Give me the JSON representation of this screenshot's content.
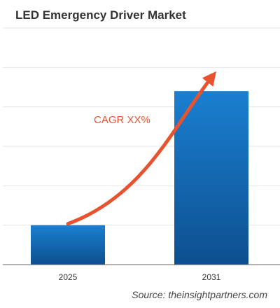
{
  "chart_data": {
    "type": "bar",
    "title": "LED Emergency Driver Market",
    "categories": [
      "2025",
      "2031"
    ],
    "series": [
      {
        "values": [
          1,
          4.4
        ]
      }
    ],
    "annotation": "CAGR XX%",
    "source": "Source: theinsightpartners.com",
    "ylim": [
      0,
      6
    ],
    "grid": true,
    "legend": "none",
    "colors": {
      "bar_top": "#1a7fd0",
      "bar_bottom": "#0d4f8f",
      "arrow": "#e8532f",
      "grid": "#e6e6e6",
      "axis": "#666666"
    }
  }
}
